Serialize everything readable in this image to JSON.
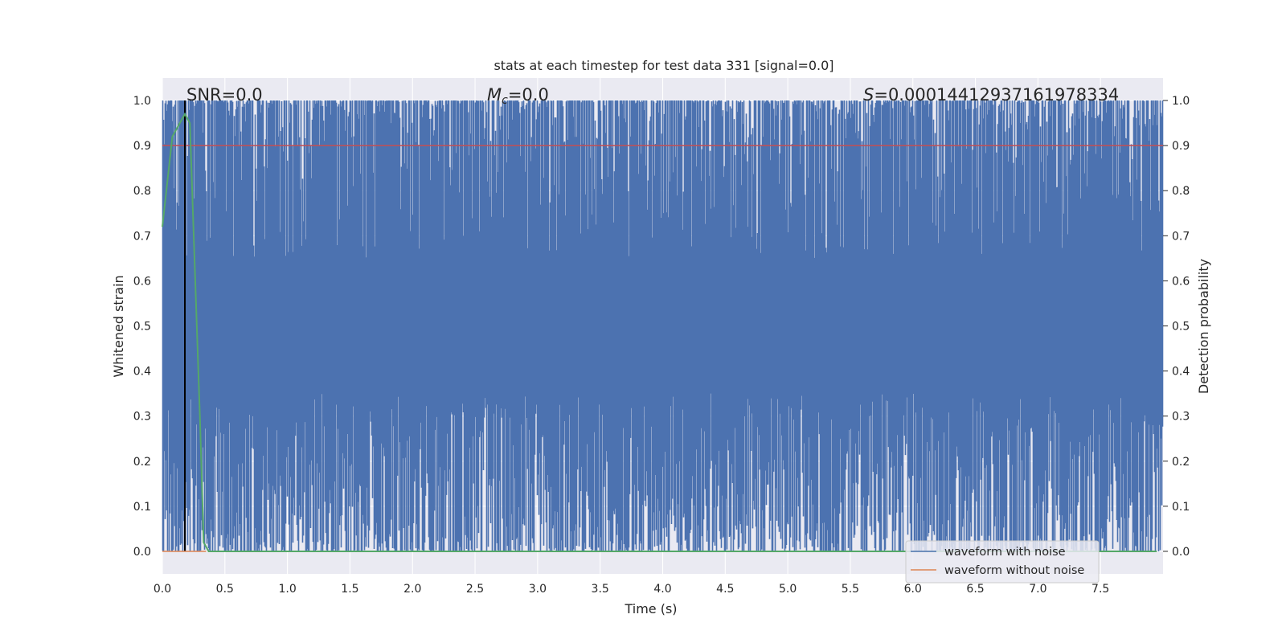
{
  "chart_data": {
    "type": "line",
    "title": "stats at each timestep for test data 331 [signal=0.0]",
    "xlabel": "Time (s)",
    "ylabel": "Whitened strain",
    "ylabel_right": "Detection probability",
    "xlim": [
      0.0,
      8.0
    ],
    "ylim": [
      -0.05,
      1.05
    ],
    "xticks": [
      0.0,
      0.5,
      1.0,
      1.5,
      2.0,
      2.5,
      3.0,
      3.5,
      4.0,
      4.5,
      5.0,
      5.5,
      6.0,
      6.5,
      7.0,
      7.5
    ],
    "xtick_labels": [
      "0.0",
      "0.5",
      "1.0",
      "1.5",
      "2.0",
      "2.5",
      "3.0",
      "3.5",
      "4.0",
      "4.5",
      "5.0",
      "5.5",
      "6.0",
      "6.5",
      "7.0",
      "7.5"
    ],
    "yticks": [
      0.0,
      0.1,
      0.2,
      0.3,
      0.4,
      0.5,
      0.6,
      0.7,
      0.8,
      0.9,
      1.0
    ],
    "ytick_labels": [
      "0.0",
      "0.1",
      "0.2",
      "0.3",
      "0.4",
      "0.5",
      "0.6",
      "0.7",
      "0.8",
      "0.9",
      "1.0"
    ],
    "grid": true,
    "legend_position": "lower-right",
    "annotations": {
      "snr": "SNR=0.0",
      "mc_symbol": "M",
      "mc_sub": "c",
      "mc_value": "=0.0",
      "s_symbol": "S",
      "s_value": "=0.00014412937161978334"
    },
    "series": [
      {
        "name": "waveform with noise",
        "color": "#4c72b0",
        "style": "dense noise band (min, max) per time bin",
        "x_range": [
          0.0,
          8.0
        ],
        "band_low_typical": [
          0.0,
          0.35
        ],
        "band_high_typical": [
          0.65,
          1.0
        ]
      },
      {
        "name": "waveform without noise",
        "color": "#dd8452",
        "x": [
          0.0,
          0.35
        ],
        "values": [
          0.0,
          0.0
        ]
      },
      {
        "color": "#55a868",
        "axis": "right",
        "x": [
          0.0,
          0.08,
          0.18,
          0.22,
          0.3,
          0.33,
          0.37,
          0.45,
          1.0,
          7.95
        ],
        "values": [
          0.72,
          0.92,
          0.97,
          0.95,
          0.3,
          0.02,
          0.0,
          0.0,
          0.0,
          0.0
        ]
      }
    ],
    "reference_lines": [
      {
        "orientation": "horizontal",
        "y": 0.9,
        "color": "#c44e52"
      },
      {
        "orientation": "vertical",
        "x": 0.18,
        "y_range": [
          0.0,
          1.0
        ],
        "color": "#000000"
      }
    ]
  }
}
